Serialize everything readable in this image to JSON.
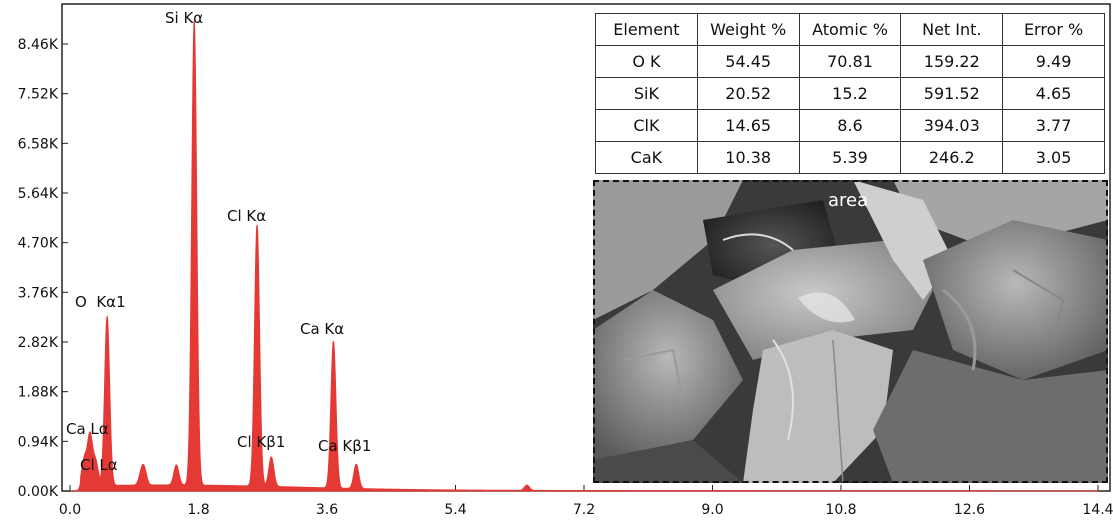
{
  "chart_data": {
    "type": "area",
    "xlim": [
      0.0,
      14.4
    ],
    "ylim": [
      0,
      9000
    ],
    "x_ticks": [
      "0.0",
      "1.8",
      "3.6",
      "5.4",
      "7.2",
      "9.0",
      "10.8",
      "12.6",
      "14.4"
    ],
    "y_ticks": [
      "0.00K",
      "0.94K",
      "1.88K",
      "2.82K",
      "3.76K",
      "4.70K",
      "5.64K",
      "6.58K",
      "7.52K",
      "8.46K"
    ],
    "series_color": "#e53935",
    "peaks": [
      {
        "x": 0.28,
        "y": 950,
        "label": "Ca Lα"
      },
      {
        "x": 0.36,
        "y": 450,
        "label": "Cl Lα"
      },
      {
        "x": 0.52,
        "y": 3200,
        "label": "O  Kα1"
      },
      {
        "x": 1.74,
        "y": 8800,
        "label": "Si Kα"
      },
      {
        "x": 2.62,
        "y": 4950,
        "label": "Cl Kα"
      },
      {
        "x": 2.82,
        "y": 560,
        "label": "Cl Kβ1"
      },
      {
        "x": 3.69,
        "y": 2780,
        "label": "Ca Kα"
      },
      {
        "x": 4.01,
        "y": 460,
        "label": "Ca Kβ1"
      }
    ],
    "minor_peaks": [
      {
        "x": 0.2,
        "y": 500
      },
      {
        "x": 1.0,
        "y": 200
      },
      {
        "x": 1.04,
        "y": 260
      },
      {
        "x": 1.49,
        "y": 380
      },
      {
        "x": 6.4,
        "y": 100
      }
    ]
  },
  "table": {
    "headers": [
      "Element",
      "Weight %",
      "Atomic %",
      "Net Int.",
      "Error %"
    ],
    "rows": [
      [
        "O K",
        "54.45",
        "70.81",
        "159.22",
        "9.49"
      ],
      [
        "SiK",
        "20.52",
        "15.2",
        "591.52",
        "4.65"
      ],
      [
        "ClK",
        "14.65",
        "8.6",
        "394.03",
        "3.77"
      ],
      [
        "CaK",
        "10.38",
        "5.39",
        "246.2",
        "3.05"
      ]
    ]
  },
  "sem_image": {
    "label": "area"
  }
}
